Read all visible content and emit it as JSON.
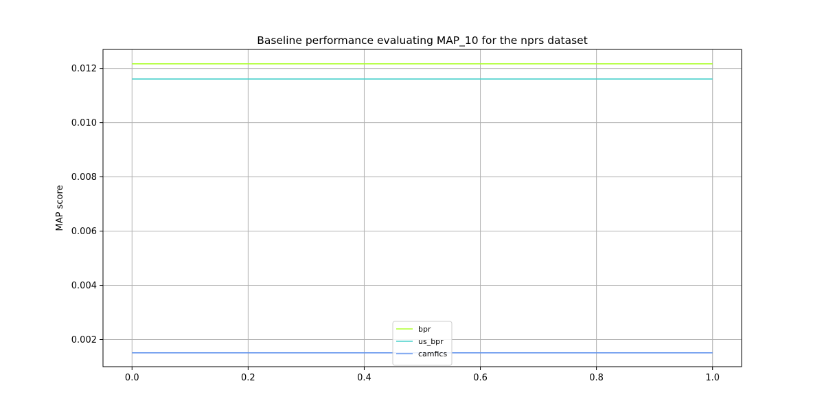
{
  "chart_data": {
    "type": "line",
    "title": "Baseline performance evaluating MAP_10 for the nprs dataset",
    "xlabel": "",
    "ylabel": "MAP score",
    "xlim": [
      -0.05,
      1.05
    ],
    "ylim": [
      0.001,
      0.0127
    ],
    "x_ticks": [
      0.0,
      0.2,
      0.4,
      0.6,
      0.8,
      1.0
    ],
    "x_tick_labels": [
      "0.0",
      "0.2",
      "0.4",
      "0.6",
      "0.8",
      "1.0"
    ],
    "y_ticks": [
      0.002,
      0.004,
      0.006,
      0.008,
      0.01,
      0.012
    ],
    "y_tick_labels": [
      "0.002",
      "0.004",
      "0.006",
      "0.008",
      "0.010",
      "0.012"
    ],
    "grid": true,
    "legend_position": "bottom-center",
    "series": [
      {
        "name": "bpr",
        "x": [
          0.0,
          1.0
        ],
        "y": [
          0.01217,
          0.01217
        ],
        "color": "#adff2f"
      },
      {
        "name": "us_bpr",
        "x": [
          0.0,
          1.0
        ],
        "y": [
          0.01161,
          0.01161
        ],
        "color": "#48d1cc"
      },
      {
        "name": "camfics",
        "x": [
          0.0,
          1.0
        ],
        "y": [
          0.00151,
          0.00151
        ],
        "color": "#6495ed"
      }
    ]
  }
}
